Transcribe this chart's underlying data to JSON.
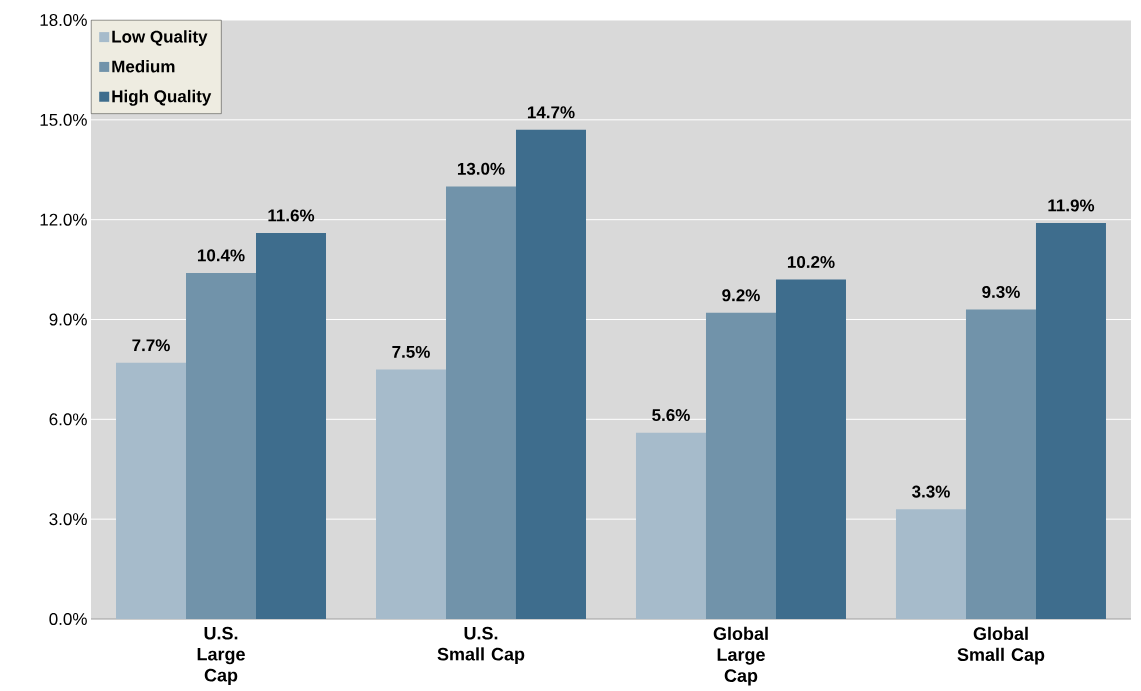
{
  "chart_data": {
    "type": "bar",
    "categories": [
      "U.S. Large Cap",
      "U.S. Small Cap",
      "Global Large Cap",
      "Global Small Cap"
    ],
    "series": [
      {
        "name": "Low Quality",
        "color": "#a6bbcb",
        "values": [
          7.7,
          7.5,
          5.6,
          3.3
        ],
        "value_labels": [
          "7.7%",
          "7.5%",
          "5.6%",
          "3.3%"
        ]
      },
      {
        "name": "Medium",
        "color": "#7193aa",
        "values": [
          10.4,
          13.0,
          9.2,
          9.3
        ],
        "value_labels": [
          "10.4%",
          "13.0%",
          "9.2%",
          "9.3%"
        ]
      },
      {
        "name": "High Quality",
        "color": "#3e6d8d",
        "values": [
          11.6,
          14.7,
          10.2,
          11.9
        ],
        "value_labels": [
          "11.6%",
          "14.7%",
          "10.2%",
          "11.9%"
        ]
      }
    ],
    "ylim": [
      0,
      18
    ],
    "yticks": [
      {
        "value": 0,
        "label": "0.0%"
      },
      {
        "value": 3,
        "label": "3.0%"
      },
      {
        "value": 6,
        "label": "6.0%"
      },
      {
        "value": 9,
        "label": "9.0%"
      },
      {
        "value": 12,
        "label": "12.0%"
      },
      {
        "value": 15,
        "label": "15.0%"
      },
      {
        "value": 18,
        "label": "18.0%"
      }
    ],
    "grid": "y",
    "legend": "top left"
  }
}
